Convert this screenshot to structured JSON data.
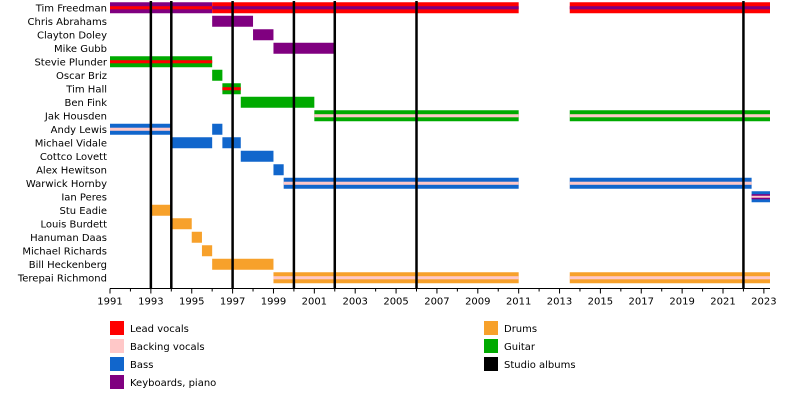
{
  "chart_data": {
    "type": "timeline",
    "x_range": [
      1991,
      2023.3
    ],
    "x_ticks": [
      1991,
      1993,
      1995,
      1997,
      1999,
      2001,
      2003,
      2005,
      2007,
      2009,
      2011,
      2013,
      2015,
      2017,
      2019,
      2021,
      2023
    ],
    "grid": false,
    "colors": {
      "lead_vocals": "#ff0000",
      "backing_vocals": "#ffc8c8",
      "bass": "#1166cc",
      "keyboards": "#800080",
      "drums": "#f7a12b",
      "guitar": "#00aa00",
      "studio_albums": "#000000"
    },
    "members": [
      {
        "name": "Tim Freedman",
        "segments": [
          {
            "start": 1991,
            "end": 1996,
            "layers": [
              "keyboards",
              "lead_vocals"
            ]
          },
          {
            "start": 1996,
            "end": 2011,
            "layers": [
              "lead_vocals",
              "keyboards"
            ]
          },
          {
            "start": 2013.5,
            "end": 2023.3,
            "layers": [
              "lead_vocals",
              "keyboards"
            ]
          }
        ]
      },
      {
        "name": "Chris Abrahams",
        "segments": [
          {
            "start": 1996,
            "end": 1998,
            "layers": [
              "keyboards"
            ]
          }
        ]
      },
      {
        "name": "Clayton Doley",
        "segments": [
          {
            "start": 1998,
            "end": 1999,
            "layers": [
              "keyboards"
            ]
          }
        ]
      },
      {
        "name": "Mike Gubb",
        "segments": [
          {
            "start": 1999,
            "end": 2002,
            "layers": [
              "keyboards"
            ]
          }
        ]
      },
      {
        "name": "Stevie Plunder",
        "segments": [
          {
            "start": 1991,
            "end": 1996,
            "layers": [
              "guitar",
              "lead_vocals"
            ]
          }
        ]
      },
      {
        "name": "Oscar Briz",
        "segments": [
          {
            "start": 1996,
            "end": 1996.5,
            "layers": [
              "guitar"
            ]
          }
        ]
      },
      {
        "name": "Tim Hall",
        "segments": [
          {
            "start": 1996.5,
            "end": 1997.4,
            "layers": [
              "guitar",
              "lead_vocals"
            ]
          }
        ]
      },
      {
        "name": "Ben Fink",
        "segments": [
          {
            "start": 1997.4,
            "end": 2001,
            "layers": [
              "guitar"
            ]
          }
        ]
      },
      {
        "name": "Jak Housden",
        "segments": [
          {
            "start": 2001,
            "end": 2011,
            "layers": [
              "guitar",
              "backing_vocals"
            ]
          },
          {
            "start": 2013.5,
            "end": 2023.3,
            "layers": [
              "guitar",
              "backing_vocals"
            ]
          }
        ]
      },
      {
        "name": "Andy Lewis",
        "segments": [
          {
            "start": 1991,
            "end": 1994,
            "layers": [
              "bass",
              "backing_vocals"
            ]
          },
          {
            "start": 1996,
            "end": 1996.5,
            "layers": [
              "bass"
            ]
          }
        ]
      },
      {
        "name": "Michael Vidale",
        "segments": [
          {
            "start": 1994,
            "end": 1996,
            "layers": [
              "bass"
            ]
          },
          {
            "start": 1996.5,
            "end": 1997.4,
            "layers": [
              "bass"
            ]
          }
        ]
      },
      {
        "name": "Cottco Lovett",
        "segments": [
          {
            "start": 1997.4,
            "end": 1999,
            "layers": [
              "bass"
            ]
          }
        ]
      },
      {
        "name": "Alex Hewitson",
        "segments": [
          {
            "start": 1999,
            "end": 1999.5,
            "layers": [
              "bass"
            ]
          }
        ]
      },
      {
        "name": "Warwick Hornby",
        "segments": [
          {
            "start": 1999.5,
            "end": 2011,
            "layers": [
              "bass",
              "backing_vocals"
            ]
          },
          {
            "start": 2013.5,
            "end": 2022.4,
            "layers": [
              "bass",
              "backing_vocals"
            ]
          }
        ]
      },
      {
        "name": "Ian Peres",
        "segments": [
          {
            "start": 2022.4,
            "end": 2023.3,
            "layers": [
              "bass",
              "keyboards",
              "backing_vocals"
            ]
          }
        ]
      },
      {
        "name": "Stu Eadie",
        "segments": [
          {
            "start": 1993,
            "end": 1994,
            "layers": [
              "drums"
            ]
          }
        ]
      },
      {
        "name": "Louis Burdett",
        "segments": [
          {
            "start": 1994,
            "end": 1995,
            "layers": [
              "drums"
            ]
          }
        ]
      },
      {
        "name": "Hanuman Daas",
        "segments": [
          {
            "start": 1995,
            "end": 1995.5,
            "layers": [
              "drums"
            ]
          }
        ]
      },
      {
        "name": "Michael Richards",
        "segments": [
          {
            "start": 1995.5,
            "end": 1996,
            "layers": [
              "drums"
            ]
          }
        ]
      },
      {
        "name": "Bill Heckenberg",
        "segments": [
          {
            "start": 1996,
            "end": 1999,
            "layers": [
              "drums"
            ]
          }
        ]
      },
      {
        "name": "Terepai Richmond",
        "segments": [
          {
            "start": 1999,
            "end": 2011,
            "layers": [
              "drums",
              "backing_vocals"
            ]
          },
          {
            "start": 2013.5,
            "end": 2023.3,
            "layers": [
              "drums",
              "backing_vocals"
            ]
          }
        ]
      }
    ],
    "studio_albums": [
      1993,
      1994,
      1997,
      2000,
      2002,
      2006,
      2022
    ],
    "legend": [
      {
        "key": "lead_vocals",
        "label": "Lead vocals",
        "column": 0
      },
      {
        "key": "backing_vocals",
        "label": "Backing vocals",
        "column": 0
      },
      {
        "key": "bass",
        "label": "Bass",
        "column": 0
      },
      {
        "key": "keyboards",
        "label": "Keyboards, piano",
        "column": 0
      },
      {
        "key": "drums",
        "label": "Drums",
        "column": 1
      },
      {
        "key": "guitar",
        "label": "Guitar",
        "column": 1
      },
      {
        "key": "studio_albums",
        "label": "Studio albums",
        "column": 1
      }
    ]
  }
}
